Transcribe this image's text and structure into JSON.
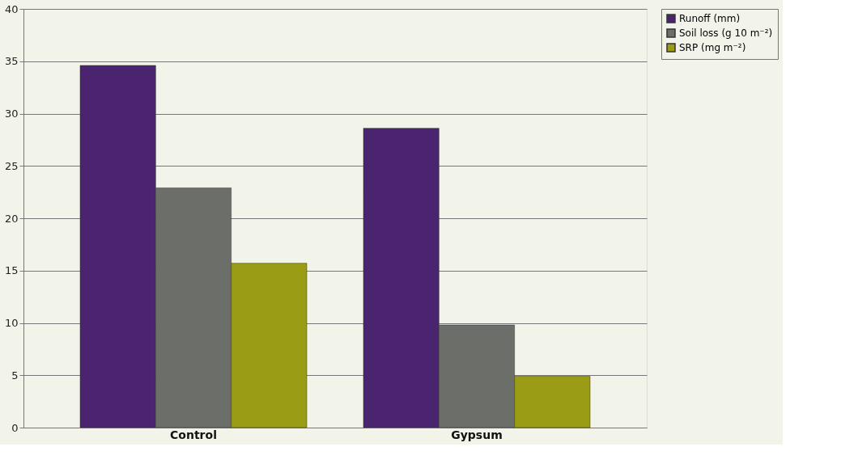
{
  "chart_data": {
    "type": "bar",
    "categories": [
      "Control",
      "Gypsum"
    ],
    "series": [
      {
        "name": "Runoff (mm)",
        "color": "#4b2470",
        "values": [
          34.6,
          28.6
        ]
      },
      {
        "name": "Soil loss (g 10 m⁻²)",
        "color": "#6b6e69",
        "values": [
          22.9,
          9.8
        ]
      },
      {
        "name": "SRP (mg m⁻²)",
        "color": "#9a9c16",
        "values": [
          15.7,
          4.9
        ]
      }
    ],
    "ylim": [
      0,
      40
    ],
    "yticks": [
      0,
      5,
      10,
      15,
      20,
      25,
      30,
      35,
      40
    ],
    "grid": "y",
    "legend": "right"
  }
}
